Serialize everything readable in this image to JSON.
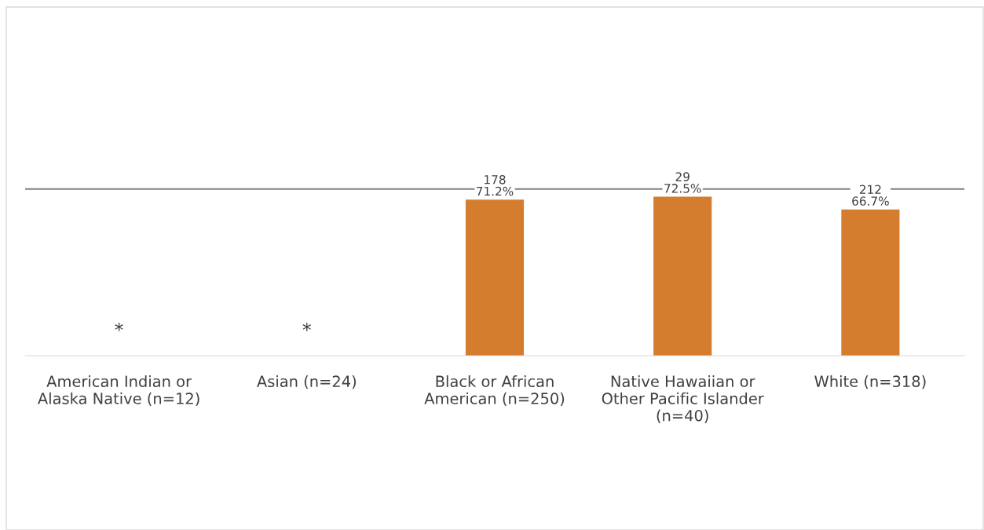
{
  "chart_data": {
    "type": "bar",
    "categories": [
      "American Indian or\nAlaska Native (n=12)",
      "Asian (n=24)",
      "Black or African\nAmerican (n=250)",
      "Native Hawaiian or\nOther Pacific Islander\n(n=40)",
      "White (n=318)"
    ],
    "values": [
      null,
      null,
      71.2,
      72.5,
      66.7
    ],
    "value_labels": [
      "*",
      "*",
      "178\n71.2%",
      "29\n72.5%",
      "212\n66.7%"
    ],
    "color": "#d57d2f",
    "ref_lines": [
      {
        "axis": "y",
        "value": 76,
        "color": "#7f7f7f"
      }
    ],
    "tick_labels": "x",
    "grid": false,
    "legend": false
  }
}
